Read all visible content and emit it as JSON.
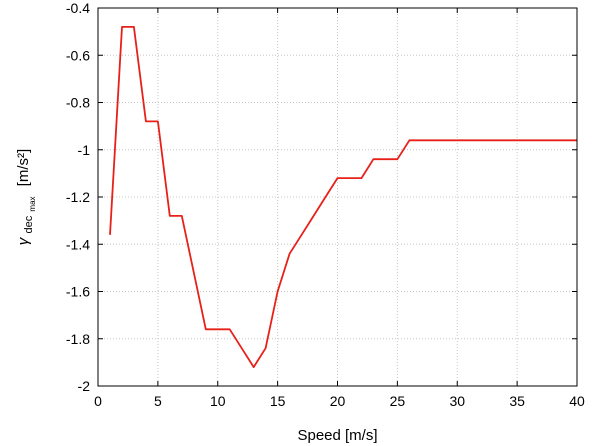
{
  "chart_data": {
    "type": "line",
    "title": "",
    "xlabel": "Speed [m/s]",
    "ylabel": {
      "symbol": "γ",
      "sub": "dec",
      "subsub": "max",
      "unit": "[m/s²]"
    },
    "xlim": [
      0,
      40
    ],
    "ylim": [
      -2,
      -0.4
    ],
    "xticks": [
      0,
      5,
      10,
      15,
      20,
      25,
      30,
      35,
      40
    ],
    "yticks": [
      -2,
      -1.8,
      -1.6,
      -1.4,
      -1.2,
      -1,
      -0.8,
      -0.6,
      -0.4
    ],
    "grid": true,
    "series": [
      {
        "color": "#e8201a",
        "x": [
          1,
          2,
          3,
          4,
          5,
          6,
          7,
          8,
          9,
          10,
          11,
          12,
          13,
          14,
          15,
          16,
          17,
          18,
          19,
          20,
          21,
          22,
          23,
          24,
          25,
          26,
          30,
          35,
          40
        ],
        "y": [
          -1.36,
          -0.48,
          -0.48,
          -0.88,
          -0.88,
          -1.28,
          -1.28,
          -1.52,
          -1.76,
          -1.76,
          -1.76,
          -1.84,
          -1.92,
          -1.84,
          -1.6,
          -1.44,
          -1.36,
          -1.28,
          -1.2,
          -1.12,
          -1.12,
          -1.12,
          -1.04,
          -1.04,
          -1.04,
          -0.96,
          -0.96,
          -0.96,
          -0.96
        ]
      }
    ]
  }
}
